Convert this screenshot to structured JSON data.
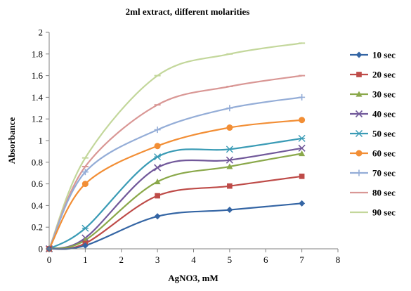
{
  "chart_data": {
    "type": "line",
    "title": "2ml extract, different molarities",
    "xlabel": "AgNO3, mM",
    "ylabel": "Absorbance",
    "xlim": [
      0,
      8
    ],
    "ylim": [
      0,
      2
    ],
    "x_ticks": [
      "0",
      "1",
      "2",
      "3",
      "4",
      "5",
      "6",
      "7",
      "8"
    ],
    "y_ticks": [
      "0",
      "0.2",
      "0.4",
      "0.6",
      "0.8",
      "1",
      "1.2",
      "1.4",
      "1.6",
      "1.8",
      "2"
    ],
    "grid": false,
    "legend_position": "right",
    "smooth": true,
    "x": [
      0,
      1,
      3,
      5,
      7
    ],
    "series": [
      {
        "name": "10 sec",
        "values": [
          0,
          0.03,
          0.3,
          0.36,
          0.42
        ],
        "color": "#3465a4",
        "marker": "diamond"
      },
      {
        "name": "20 sec",
        "values": [
          0,
          0.05,
          0.49,
          0.58,
          0.67
        ],
        "color": "#be4b48",
        "marker": "square"
      },
      {
        "name": "30 sec",
        "values": [
          0,
          0.08,
          0.62,
          0.76,
          0.88
        ],
        "color": "#8aa84a",
        "marker": "triangle"
      },
      {
        "name": "40 sec",
        "values": [
          0,
          0.1,
          0.75,
          0.82,
          0.93
        ],
        "color": "#71589a",
        "marker": "x"
      },
      {
        "name": "50 sec",
        "values": [
          0,
          0.19,
          0.85,
          0.92,
          1.02
        ],
        "color": "#3a9bb5",
        "marker": "star"
      },
      {
        "name": "60 sec",
        "values": [
          0,
          0.6,
          0.95,
          1.12,
          1.19
        ],
        "color": "#f28e35",
        "marker": "circle"
      },
      {
        "name": "70 sec",
        "values": [
          0,
          0.71,
          1.1,
          1.3,
          1.4
        ],
        "color": "#94add7",
        "marker": "plus"
      },
      {
        "name": "80 sec",
        "values": [
          0,
          0.76,
          1.33,
          1.5,
          1.6
        ],
        "color": "#d99795",
        "marker": "dash"
      },
      {
        "name": "90 sec",
        "values": [
          0,
          0.84,
          1.6,
          1.8,
          1.9
        ],
        "color": "#c3d79b",
        "marker": "dash"
      }
    ]
  }
}
